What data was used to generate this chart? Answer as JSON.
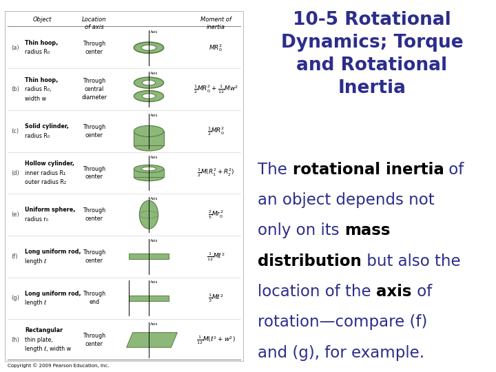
{
  "title": "10-5 Rotational\nDynamics; Torque\nand Rotational\nInertia",
  "title_color": "#2d2d8c",
  "title_fontsize": 19,
  "body_fontsize": 16.5,
  "blue_color": "#2d2d8c",
  "black_color": "#000000",
  "background_color": "#ffffff",
  "left_bg": "#f0efe8",
  "copyright_text": "Copyright © 2009 Pearson Education, Inc.",
  "lines": [
    [
      [
        "The ",
        false
      ],
      [
        "rotational inertia",
        true
      ],
      [
        " of",
        false
      ]
    ],
    [
      [
        "an object depends not",
        false
      ]
    ],
    [
      [
        "only on its ",
        false
      ],
      [
        "mass",
        true
      ]
    ],
    [
      [
        "distribution",
        true
      ],
      [
        " but also the",
        false
      ]
    ],
    [
      [
        "location of the ",
        false
      ],
      [
        "axis",
        true
      ],
      [
        " of",
        false
      ]
    ],
    [
      [
        "rotation—compare (f)",
        false
      ]
    ],
    [
      [
        "and (g), for example.",
        false
      ]
    ]
  ]
}
